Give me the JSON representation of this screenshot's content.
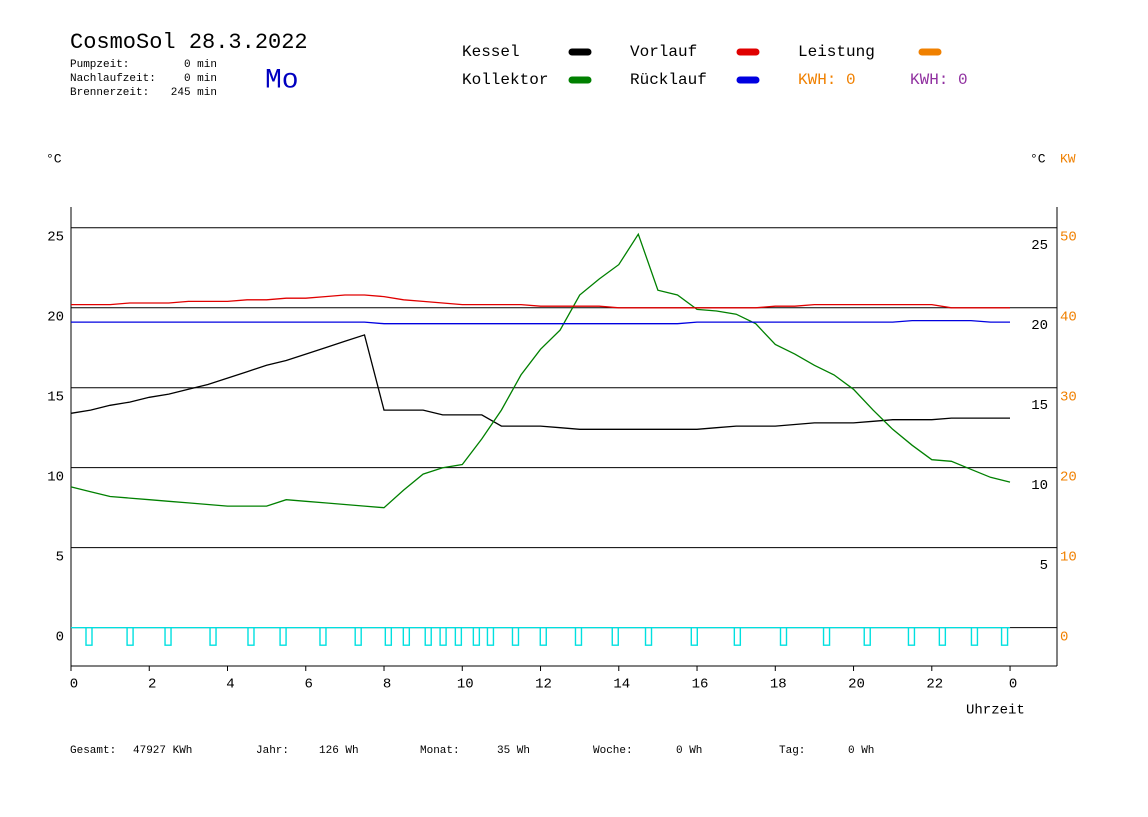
{
  "chart_data": {
    "type": "line",
    "title": "CosmoSol 28.3.2022",
    "day": "Mo",
    "info": [
      [
        "Pumpzeit:",
        "0 min"
      ],
      [
        "Nachlaufzeit:",
        "0 min"
      ],
      [
        "Brennerzeit:",
        "245 min"
      ]
    ],
    "kwh_labels": [
      {
        "text": "KWH: 0",
        "color": "#f08000"
      },
      {
        "text": "KWH: 0",
        "color": "#9030a0"
      }
    ],
    "y_label": "°C",
    "y3_label": "°C",
    "y2_label": "KW",
    "x_label": "Uhrzeit",
    "x": [
      0,
      0.5,
      1,
      1.5,
      2,
      2.5,
      3,
      3.5,
      4,
      4.5,
      5,
      5.5,
      6,
      6.5,
      7,
      7.5,
      8,
      8.5,
      9,
      9.5,
      10,
      10.5,
      11,
      11.5,
      12,
      12.5,
      13,
      13.5,
      14,
      14.5,
      15,
      15.5,
      16,
      16.5,
      17,
      17.5,
      18,
      18.5,
      19,
      19.5,
      20,
      20.5,
      21,
      21.5,
      22,
      22.5,
      23,
      23.5,
      24
    ],
    "xlim": [
      0,
      25.2
    ],
    "xticks": [
      0,
      2,
      4,
      6,
      8,
      10,
      12,
      14,
      16,
      18,
      20,
      22,
      {
        "value": 24,
        "label": "0"
      }
    ],
    "ylim": [
      -2.4,
      26.3
    ],
    "yticks": [
      0,
      5,
      10,
      15,
      20,
      25
    ],
    "y2lim": [
      -4.8,
      52.6
    ],
    "y2ticks": [
      0,
      10,
      20,
      30,
      40,
      50
    ],
    "y2color": "#f08000",
    "y3lim": [
      -1.3,
      27.4
    ],
    "y3ticks": [
      5,
      10,
      15,
      20,
      25
    ],
    "grid": true,
    "series": [
      {
        "name": "Kessel",
        "color": "#000000",
        "values": [
          13.4,
          13.6,
          13.9,
          14.1,
          14.4,
          14.6,
          14.9,
          15.2,
          15.6,
          16.0,
          16.4,
          16.7,
          17.1,
          17.5,
          17.9,
          18.3,
          13.6,
          13.6,
          13.6,
          13.3,
          13.3,
          13.3,
          12.6,
          12.6,
          12.6,
          12.5,
          12.4,
          12.4,
          12.4,
          12.4,
          12.4,
          12.4,
          12.4,
          12.5,
          12.6,
          12.6,
          12.6,
          12.7,
          12.8,
          12.8,
          12.8,
          12.9,
          13.0,
          13.0,
          13.0,
          13.1,
          13.1,
          13.1,
          13.1
        ]
      },
      {
        "name": "Kollektor",
        "color": "#008000",
        "values": [
          8.8,
          8.5,
          8.2,
          8.1,
          8.0,
          7.9,
          7.8,
          7.7,
          7.6,
          7.6,
          7.6,
          8.0,
          7.9,
          7.8,
          7.7,
          7.6,
          7.5,
          8.6,
          9.6,
          10.0,
          10.2,
          11.8,
          13.6,
          15.8,
          17.4,
          18.6,
          20.8,
          21.8,
          22.7,
          24.6,
          21.1,
          20.8,
          19.9,
          19.8,
          19.6,
          19.0,
          17.7,
          17.1,
          16.4,
          15.8,
          14.9,
          13.6,
          12.4,
          11.4,
          10.5,
          10.4,
          9.9,
          9.4,
          9.1
        ]
      },
      {
        "name": "Vorlauf",
        "color": "#e00000",
        "values": [
          20.2,
          20.2,
          20.2,
          20.3,
          20.3,
          20.3,
          20.4,
          20.4,
          20.4,
          20.5,
          20.5,
          20.6,
          20.6,
          20.7,
          20.8,
          20.8,
          20.7,
          20.5,
          20.4,
          20.3,
          20.2,
          20.2,
          20.2,
          20.2,
          20.1,
          20.1,
          20.1,
          20.1,
          20.0,
          20.0,
          20.0,
          20.0,
          20.0,
          20.0,
          20.0,
          20.0,
          20.1,
          20.1,
          20.2,
          20.2,
          20.2,
          20.2,
          20.2,
          20.2,
          20.2,
          20.0,
          20.0,
          20.0,
          20.0
        ]
      },
      {
        "name": "Rücklauf",
        "color": "#0000e0",
        "values": [
          19.1,
          19.1,
          19.1,
          19.1,
          19.1,
          19.1,
          19.1,
          19.1,
          19.1,
          19.1,
          19.1,
          19.1,
          19.1,
          19.1,
          19.1,
          19.1,
          19.0,
          19.0,
          19.0,
          19.0,
          19.0,
          19.0,
          19.0,
          19.0,
          19.0,
          19.0,
          19.0,
          19.0,
          19.0,
          19.0,
          19.0,
          19.0,
          19.1,
          19.1,
          19.1,
          19.1,
          19.1,
          19.1,
          19.1,
          19.1,
          19.1,
          19.1,
          19.1,
          19.2,
          19.2,
          19.2,
          19.2,
          19.1,
          19.1
        ]
      },
      {
        "name": "Leistung",
        "color": "#f08000",
        "axis": "y2"
      }
    ],
    "pump": {
      "color": "#00e0e0",
      "level": 0,
      "depth": -1.1,
      "x": [
        0.46,
        1.51,
        2.48,
        3.63,
        4.6,
        5.42,
        6.44,
        7.34,
        8.11,
        8.57,
        9.13,
        9.51,
        9.9,
        10.36,
        10.72,
        11.36,
        12.07,
        12.97,
        13.91,
        14.76,
        15.93,
        17.03,
        18.21,
        19.31,
        20.35,
        21.48,
        22.27,
        23.09,
        23.86
      ]
    },
    "totals": [
      [
        "Gesamt:",
        "47927 KWh"
      ],
      [
        "Jahr:",
        "126 Wh"
      ],
      [
        "Monat:",
        "35 Wh"
      ],
      [
        "Woche:",
        "0 Wh"
      ],
      [
        "Tag:",
        "0 Wh"
      ]
    ]
  }
}
